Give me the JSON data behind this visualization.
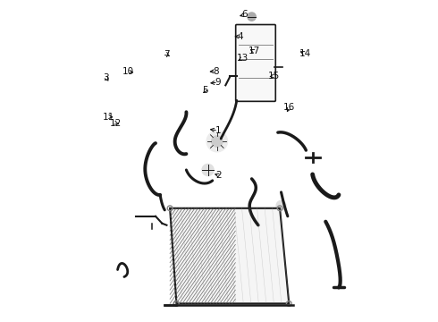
{
  "bg_color": "#ffffff",
  "line_color": "#1a1a1a",
  "label_color": "#111111",
  "figsize": [
    4.9,
    3.6
  ],
  "dpi": 100,
  "parts_labels": {
    "1": [
      0.497,
      0.595,
      0.463,
      0.6
    ],
    "2": [
      0.5,
      0.455,
      0.478,
      0.462
    ],
    "3": [
      0.148,
      0.76,
      0.16,
      0.742
    ],
    "4": [
      0.565,
      0.888,
      0.54,
      0.888
    ],
    "5": [
      0.457,
      0.72,
      0.447,
      0.705
    ],
    "6": [
      0.58,
      0.956,
      0.556,
      0.95
    ],
    "7": [
      0.338,
      0.832,
      0.352,
      0.822
    ],
    "8": [
      0.49,
      0.78,
      0.462,
      0.778
    ],
    "9": [
      0.497,
      0.745,
      0.464,
      0.742
    ],
    "10": [
      0.218,
      0.778,
      0.242,
      0.775
    ],
    "11": [
      0.155,
      0.638,
      0.178,
      0.636
    ],
    "12": [
      0.178,
      0.618,
      0.195,
      0.612
    ],
    "13": [
      0.573,
      0.82,
      0.552,
      0.808
    ],
    "14": [
      0.768,
      0.835,
      0.745,
      0.845
    ],
    "15": [
      0.672,
      0.765,
      0.649,
      0.762
    ],
    "16": [
      0.72,
      0.668,
      0.708,
      0.645
    ],
    "17": [
      0.61,
      0.842,
      0.596,
      0.848
    ]
  }
}
